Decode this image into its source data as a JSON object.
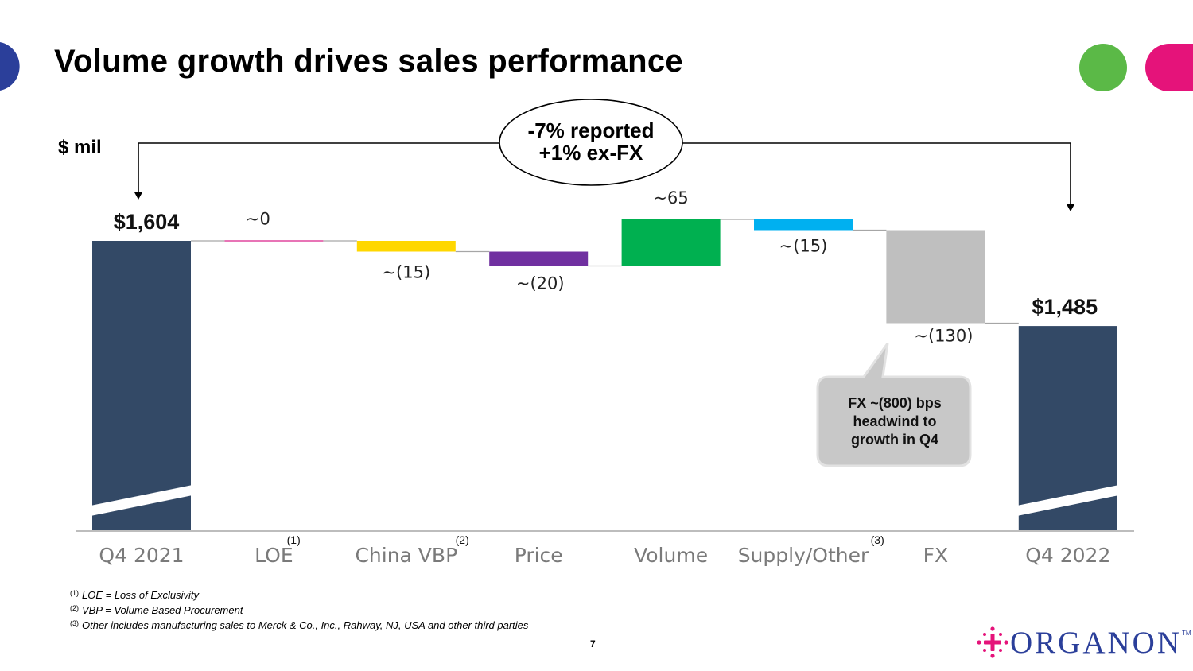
{
  "slide": {
    "title": "Volume growth drives sales performance",
    "unit_label": "$ mil",
    "growth_line1": "-7% reported",
    "growth_line2": "+1% ex-FX",
    "callout_line1": "FX ~(800) bps",
    "callout_line2": "headwind to",
    "callout_line3": "growth in Q4",
    "page_number": "7",
    "logo_text": "ORGANON",
    "logo_tm": "TM"
  },
  "footnotes": [
    {
      "mark": "(1)",
      "text": "LOE = Loss of Exclusivity"
    },
    {
      "mark": "(2)",
      "text": "VBP = Volume Based Procurement"
    },
    {
      "mark": "(3)",
      "text": "Other includes manufacturing sales to Merck & Co., Inc., Rahway, NJ, USA  and other third parties"
    }
  ],
  "colors": {
    "total": "#334966",
    "loe": "#e0479e",
    "china_vbp": "#ffd700",
    "price": "#7030a0",
    "volume": "#00b050",
    "supply_other": "#00b0f0",
    "fx": "#bfbfbf",
    "brand_blue": "#2b3f9a",
    "deco_green": "#5bb947",
    "deco_pink": "#e5137a"
  },
  "chart_data": {
    "type": "waterfall",
    "unit": "$ mil",
    "categories": [
      "Q4 2021",
      "LOE",
      "China VBP",
      "Price",
      "Volume",
      "Supply/Other",
      "FX",
      "Q4 2022"
    ],
    "footnote_marks": [
      "",
      "(1)",
      "(2)",
      "",
      "",
      "(3)",
      "",
      ""
    ],
    "kinds": [
      "total",
      "delta",
      "delta",
      "delta",
      "delta",
      "delta",
      "delta",
      "total"
    ],
    "values": [
      1604,
      0,
      -15,
      -20,
      65,
      -15,
      -130,
      1485
    ],
    "value_labels": [
      "$1,604",
      "~0",
      "~(15)",
      "~(20)",
      "~65",
      "~(15)",
      "~(130)",
      "$1,485"
    ],
    "color_keys": [
      "total",
      "loe",
      "china_vbp",
      "price",
      "volume",
      "supply_other",
      "fx",
      "total"
    ],
    "axis_break": true,
    "visible_ylim": [
      1420,
      1700
    ]
  }
}
